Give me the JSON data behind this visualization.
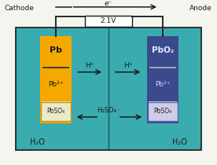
{
  "bg_color": "#f5f5f0",
  "tank_color": "#3aacb0",
  "tank_border": "#2a8080",
  "cathode_color": "#f5a800",
  "anode_color": "#3b4a8c",
  "white_bottom": "#e8e4d0",
  "pbso4_border_cathode": "#c8960a",
  "pbso4_border_anode": "#5560aa",
  "divider_color": "#2a8080",
  "text_dark": "#1a1a1a",
  "text_light": "#ddddee",
  "voltage": "2.1V",
  "cathode_label": "Cathode",
  "anode_label": "Anode",
  "cathode_texts_top": "Pb",
  "cathode_texts_mid": "Pb²⁺",
  "cathode_texts_bot": "PbSO₄",
  "anode_texts_top": "PbO₂",
  "anode_texts_mid": "Pb²⁺",
  "anode_texts_bot": "PbSO₄",
  "h2o_left": "H₂O",
  "h2o_right": "H₂O",
  "h_plus": "H⁺",
  "h2so4": "H₂SO₄⁻",
  "e_minus": "e⁻"
}
